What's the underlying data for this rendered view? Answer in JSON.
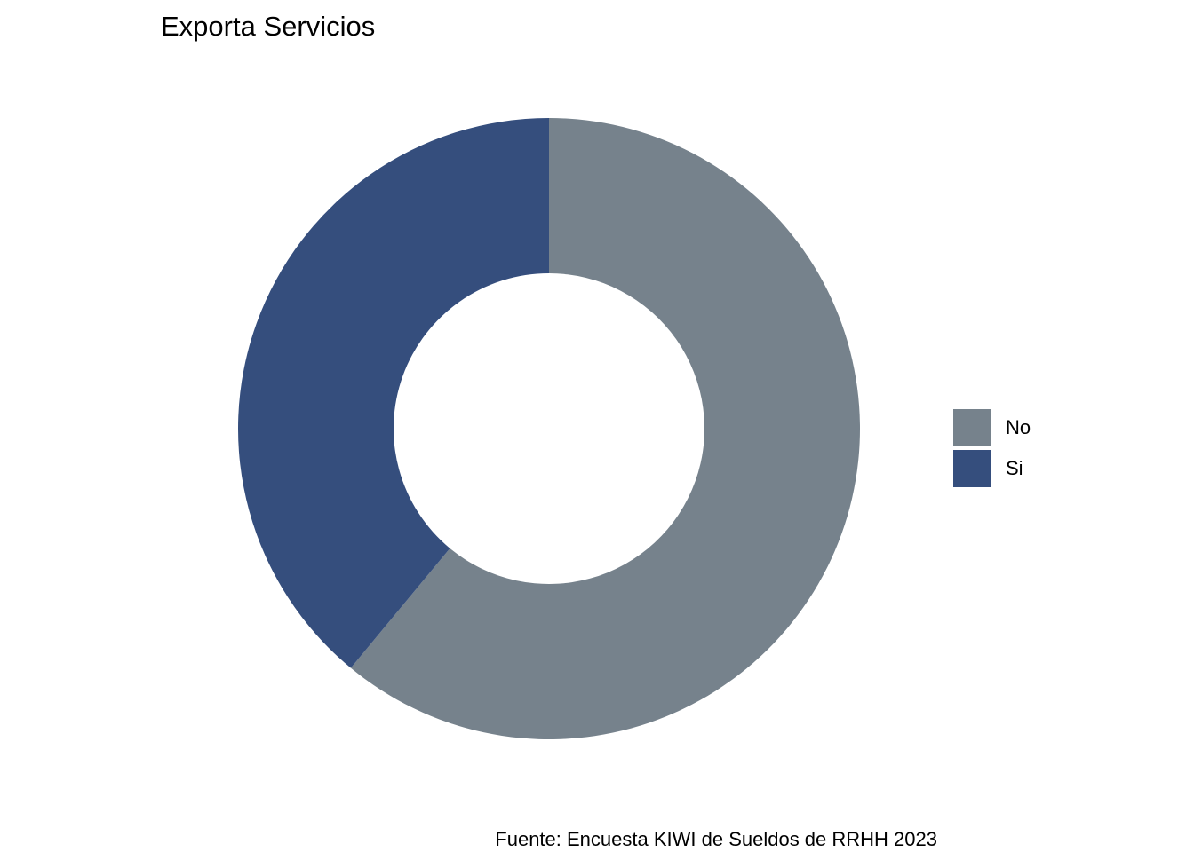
{
  "chart_data": {
    "type": "pie",
    "variant": "donut",
    "title": "Exporta Servicios",
    "caption": "Fuente: Encuesta KIWI de Sueldos de RRHH 2023",
    "categories": [
      "No",
      "Si"
    ],
    "values": [
      61,
      39
    ],
    "colors": [
      "#76828C",
      "#354E7D"
    ],
    "legend_position": "right",
    "grid": false
  }
}
